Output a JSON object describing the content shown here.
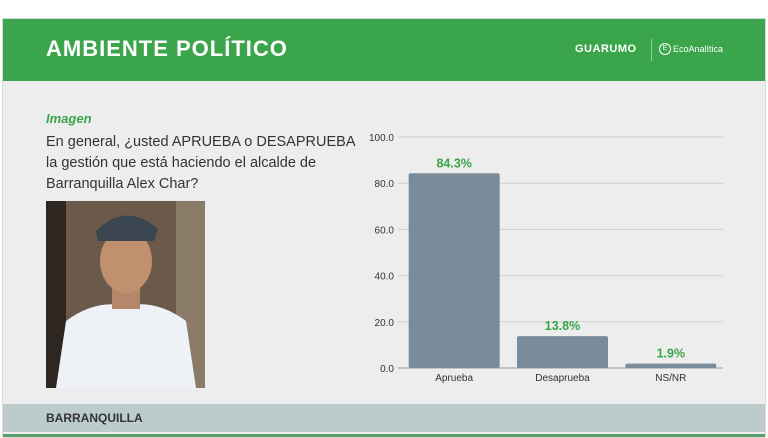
{
  "header": {
    "title": "AMBIENTE POLÍTICO",
    "logo_primary": "GUARUMO",
    "logo_secondary": "EcoAnalítica",
    "color": "#3aa54a"
  },
  "section_label": "Imagen",
  "question": "En general, ¿usted APRUEBA o DESAPRUEBA la gestión que está haciendo el alcalde de Barranquilla Alex Char?",
  "footer": {
    "city": "BARRANQUILLA"
  },
  "chart_data": {
    "type": "bar",
    "categories": [
      "Aprueba",
      "Desaprueba",
      "NS/NR"
    ],
    "values": [
      84.3,
      13.8,
      1.9
    ],
    "data_labels": [
      "84.3%",
      "13.8%",
      "1.9%"
    ],
    "yticks": [
      "0.0",
      "20.0",
      "40.0",
      "60.0",
      "80.0",
      "100.0"
    ],
    "ylim": [
      0,
      100
    ],
    "grid": true,
    "bar_color": "#7a8c99",
    "label_color": "#3aa54a"
  }
}
